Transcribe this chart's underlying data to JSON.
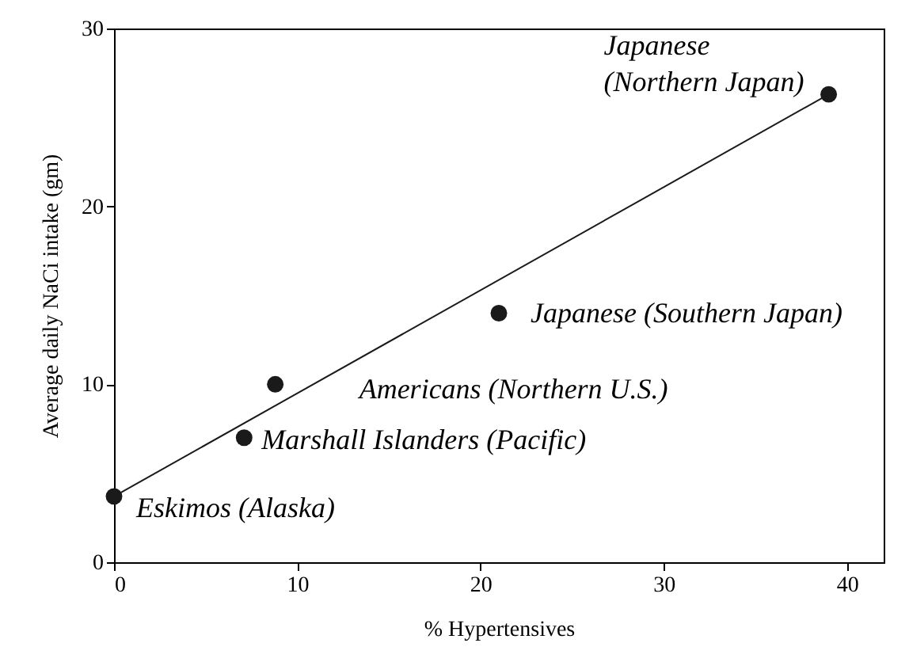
{
  "chart_data": {
    "type": "scatter",
    "xlabel": "% Hypertensives",
    "ylabel": "Average daily NaCi intake (gm)",
    "xlim": [
      0,
      42
    ],
    "ylim": [
      0,
      30
    ],
    "xticks": [
      0,
      10,
      20,
      30,
      40
    ],
    "yticks": [
      0,
      10,
      20,
      30
    ],
    "grid": false,
    "series": [
      {
        "color": "#1a1a1a",
        "marker": "circle",
        "x": [
          0,
          7.1,
          8.8,
          21,
          39
        ],
        "values": [
          3.7,
          7,
          10,
          14,
          26.3
        ]
      },
      {
        "type": "line",
        "color": "#1a1a1a",
        "x": [
          0,
          39
        ],
        "values": [
          3.7,
          26.3
        ]
      }
    ],
    "annotations": [
      "Eskimos (Alaska)",
      "Marshall Islanders (Pacific)",
      "Americans (Northern U.S.)",
      "Japanese (Southern Japan)",
      "Japanese\n(Northern Japan)"
    ]
  }
}
